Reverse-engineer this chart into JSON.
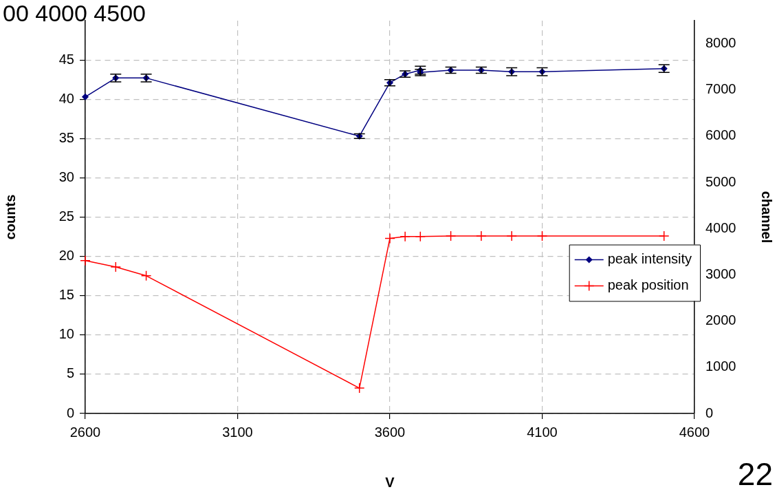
{
  "chart_data": {
    "type": "line",
    "xlabel": "V",
    "ylabel": "counts",
    "y2label": "channel",
    "xlim": [
      2600,
      4600
    ],
    "xticks": [
      2600,
      3100,
      3600,
      4100,
      4600
    ],
    "ylim": [
      0,
      50
    ],
    "yticks": [
      0,
      5,
      10,
      15,
      20,
      25,
      30,
      35,
      40,
      45
    ],
    "y2lim": [
      0,
      8500
    ],
    "y2ticks": [
      0,
      1000,
      2000,
      3000,
      4000,
      5000,
      6000,
      7000,
      8000
    ],
    "grid": true,
    "legend": "right",
    "series": [
      {
        "name": "peak intensity",
        "color": "#000080",
        "marker": "diamond",
        "x": [
          2600,
          2700,
          2800,
          3500,
          3600,
          3650,
          3700,
          3700,
          3800,
          3900,
          4000,
          4100,
          4500
        ],
        "values": [
          40.3,
          42.7,
          42.7,
          35.3,
          42.1,
          43.2,
          43.7,
          43.4,
          43.7,
          43.7,
          43.5,
          43.5,
          43.9
        ],
        "errors": [
          null,
          0.5,
          0.5,
          0.3,
          0.4,
          0.4,
          0.5,
          0.4,
          0.4,
          0.4,
          0.5,
          0.5,
          0.5
        ]
      },
      {
        "name": "peak position",
        "color": "#ff0000",
        "marker": "cross",
        "axis": "y2",
        "x": [
          2600,
          2700,
          2800,
          3500,
          3600,
          3650,
          3700,
          3800,
          3900,
          4000,
          4100,
          4500
        ],
        "values": [
          3310,
          3170,
          2980,
          550,
          3790,
          3830,
          3830,
          3840,
          3840,
          3840,
          3840,
          3840
        ]
      }
    ],
    "annotations": [
      "00 4000 4500",
      "22"
    ]
  }
}
